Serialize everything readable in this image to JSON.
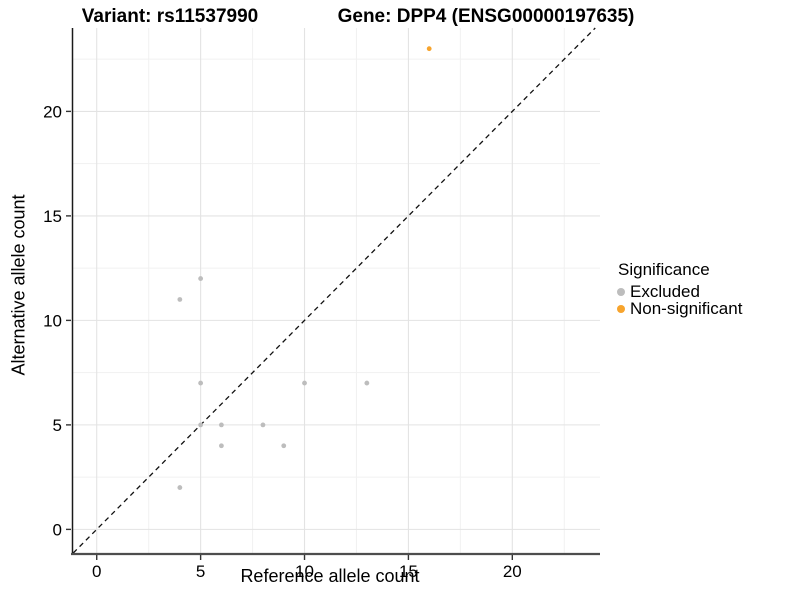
{
  "titles": {
    "left": "Variant: rs11537990",
    "right": "Gene: DPP4 (ENSG00000197635)"
  },
  "chart_data": {
    "type": "scatter",
    "xlabel": "Reference allele count",
    "ylabel": "Alternative allele count",
    "xlim": [
      -1.19,
      24.22
    ],
    "ylim": [
      -1.13,
      23.99
    ],
    "xticks": [
      0,
      5,
      10,
      15,
      20
    ],
    "yticks": [
      0,
      5,
      10,
      15,
      20
    ],
    "minor_xticks": [
      2.5,
      7.5,
      12.5,
      17.5,
      22.5
    ],
    "minor_yticks": [
      2.5,
      7.5,
      12.5,
      17.5,
      22.5
    ],
    "grid": "major+minor",
    "identity_line": {
      "type": "y=x",
      "style": "dashed",
      "color": "#111111"
    },
    "legend": {
      "title": "Significance",
      "position": "right"
    },
    "series": [
      {
        "name": "Excluded",
        "color": "#BDBDBD",
        "points": [
          [
            4,
            2
          ],
          [
            4,
            11
          ],
          [
            5,
            5
          ],
          [
            5,
            7
          ],
          [
            5,
            12
          ],
          [
            6,
            4
          ],
          [
            6,
            5
          ],
          [
            8,
            5
          ],
          [
            9,
            4
          ],
          [
            10,
            7
          ],
          [
            13,
            7
          ]
        ]
      },
      {
        "name": "Non-significant",
        "color": "#F7A42D",
        "points": [
          [
            16,
            23
          ]
        ]
      }
    ]
  }
}
